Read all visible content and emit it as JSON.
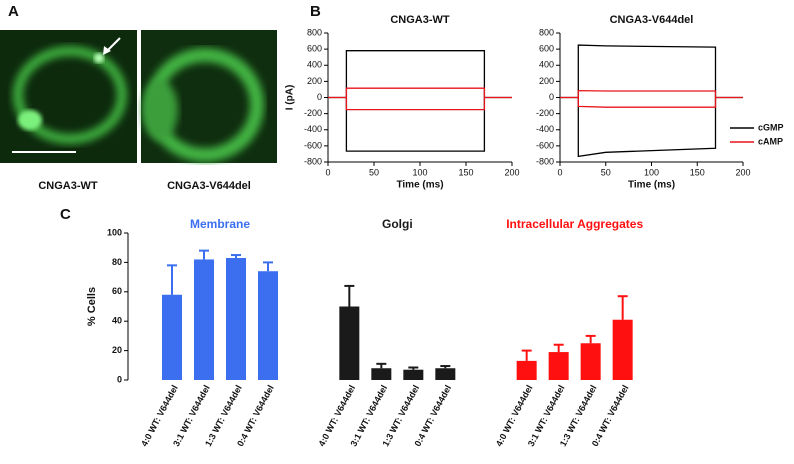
{
  "panel_labels": [
    "A",
    "B",
    "C"
  ],
  "images": [
    {
      "label": "CNGA3-WT"
    },
    {
      "label": "CNGA3-V644del"
    }
  ],
  "chart_data": [
    {
      "type": "line",
      "title": "CNGA3-WT",
      "xlabel": "Time (ms)",
      "ylabel": "I (pA)",
      "xlim": [
        0,
        200
      ],
      "ylim": [
        -800,
        800
      ],
      "xticks": [
        0,
        50,
        100,
        150,
        200
      ],
      "yticks": [
        -800,
        -600,
        -400,
        -200,
        0,
        200,
        400,
        600,
        800
      ],
      "x": [
        0,
        20,
        20,
        170,
        170,
        200,
        0,
        0,
        20,
        20,
        170,
        170,
        200
      ],
      "series": [
        {
          "color": "#000000",
          "values": [
            0,
            0,
            580,
            580,
            0,
            0,
            null,
            0,
            0,
            -665,
            -665,
            0,
            0
          ]
        },
        {
          "color": "#e8141b",
          "values": [
            0,
            0,
            115,
            115,
            0,
            0,
            null,
            0,
            0,
            -150,
            -150,
            0,
            0
          ]
        }
      ]
    },
    {
      "type": "line",
      "title": "CNGA3-V644del",
      "xlabel": "Time (ms)",
      "xlim": [
        0,
        200
      ],
      "ylim": [
        -800,
        800
      ],
      "xticks": [
        0,
        50,
        100,
        150,
        200
      ],
      "yticks": [
        -800,
        -600,
        -400,
        -200,
        0,
        200,
        400,
        600,
        800
      ],
      "x": [
        0,
        20,
        20,
        50,
        170,
        170,
        200,
        0,
        0,
        20,
        20,
        50,
        170,
        170,
        200
      ],
      "series": [
        {
          "name": "cGMP",
          "color": "#000000",
          "values": [
            0,
            0,
            650,
            640,
            625,
            0,
            0,
            null,
            0,
            0,
            -730,
            -680,
            -630,
            0,
            0
          ]
        },
        {
          "name": "cAMP",
          "color": "#e8141b",
          "values": [
            0,
            0,
            85,
            80,
            80,
            0,
            0,
            null,
            0,
            0,
            -110,
            -120,
            -120,
            0,
            0
          ]
        }
      ]
    },
    {
      "type": "bar",
      "ylabel": "% Cells",
      "ylim": [
        0,
        100
      ],
      "yticks": [
        0,
        20,
        40,
        60,
        80,
        100
      ],
      "categories": [
        "4:0 WT: V644del",
        "3:1 WT: V644del",
        "1:3 WT: V644del",
        "0:4 WT: V644del"
      ],
      "series": [
        {
          "name": "Membrane",
          "color": "#3b6ff0",
          "values": [
            58,
            82,
            83,
            74
          ],
          "errors": [
            20,
            6,
            2,
            6
          ]
        },
        {
          "name": "Golgi",
          "color": "#1a1a1a",
          "values": [
            50,
            8,
            7,
            8
          ],
          "errors": [
            14,
            3,
            1.5,
            1.5
          ]
        },
        {
          "name": "Intracellular Aggregates",
          "color": "#ff1010",
          "values": [
            13,
            19,
            25,
            41
          ],
          "errors": [
            7,
            5,
            5,
            16
          ]
        }
      ]
    }
  ]
}
